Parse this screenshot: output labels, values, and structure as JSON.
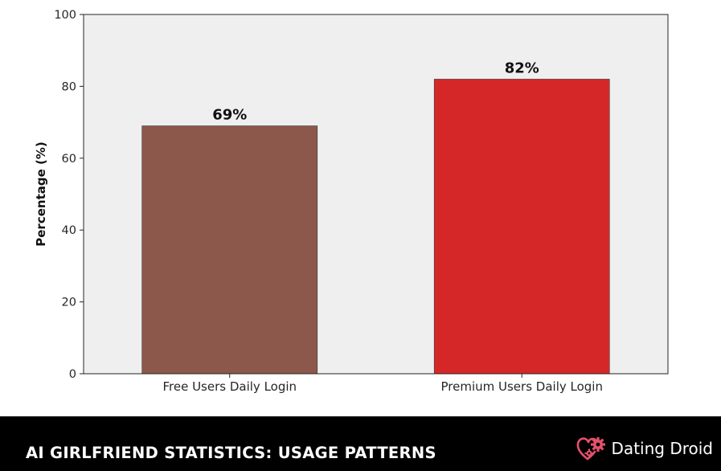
{
  "chart_data": {
    "type": "bar",
    "categories": [
      "Free Users Daily Login",
      "Premium Users Daily Login"
    ],
    "values": [
      69,
      82
    ],
    "data_labels": [
      "69%",
      "82%"
    ],
    "colors": [
      "#8b584b",
      "#d62728"
    ],
    "ylabel": "Percentage (%)",
    "ylim": [
      0,
      100
    ],
    "yticks": [
      0,
      20,
      40,
      60,
      80,
      100
    ],
    "plot_background": "#efefef",
    "grid": false
  },
  "footer": {
    "title": "AI GIRLFRIEND STATISTICS: USAGE PATTERNS",
    "brand": "Dating Droid",
    "brand_icon": "heart-gear-icon",
    "brand_color": "#e5506b",
    "background": "#000000"
  }
}
